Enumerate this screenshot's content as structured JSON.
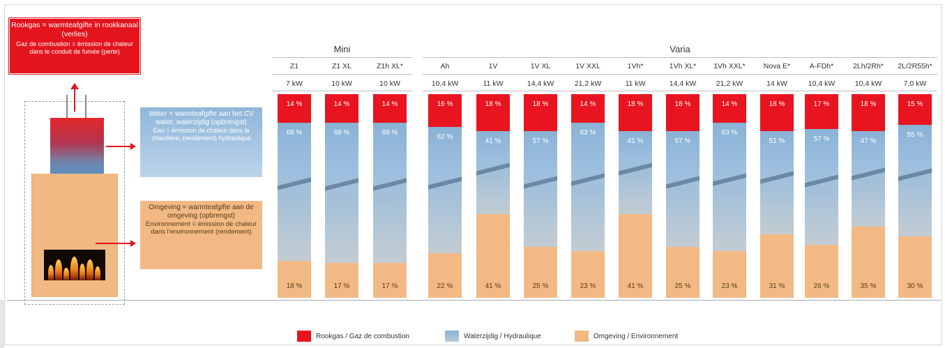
{
  "notes": {
    "flue_nl": "Rookgas = warmteafgifte in rookkanaal (verlies)",
    "flue_fr": "Gaz de combustion = émission de chaleur dans le conduit de fumée (perte)",
    "water_nl": "Water = warmteafgifte aan het CV water, waterzijdig (opbrengst)",
    "water_fr": "Eau = émission de chaleur dans la chaudière, (rendement) hydraulique",
    "env_nl": "Omgeving = warmteafgifte aan de omgeving (opbrengst)",
    "env_fr": "Environnement = émission de chaleur dans l'environnement (rendement)"
  },
  "colors": {
    "flue": "#e8141f",
    "water": "#8ab2d6",
    "environment": "#f2b985"
  },
  "chart_data": {
    "type": "bar",
    "stacked": true,
    "groups": [
      {
        "name": "Mini",
        "categories": [
          "Z1",
          "Z1 XL",
          "Z1h XL*"
        ]
      },
      {
        "name": "Varia",
        "categories": [
          "Ah",
          "1V",
          "1V XL",
          "1V XXL",
          "1Vh*",
          "1Vh XL*",
          "1Vh XXL*",
          "Nova E*",
          "A-FDh*",
          "2Lh/2Rh*",
          "2L/2R55h*"
        ]
      }
    ],
    "categories": [
      "Z1",
      "Z1 XL",
      "Z1h XL*",
      "Ah",
      "1V",
      "1V XL",
      "1V XXL",
      "1Vh*",
      "1Vh XL*",
      "1Vh XXL*",
      "Nova E*",
      "A-FDh*",
      "2Lh/2Rh*",
      "2L/2R55h*"
    ],
    "power": [
      "7 kW",
      "10 kW",
      "10 kW",
      "10,4 kW",
      "11 kW",
      "14,4 kW",
      "21,2 kW",
      "11 kW",
      "14,4 kW",
      "21,2 kW",
      "14 kW",
      "10,4 kW",
      "10,4 kW",
      "7,0 kW"
    ],
    "series": [
      {
        "name": "Rookgas / Gaz de combustion",
        "values": [
          14,
          14,
          14,
          16,
          18,
          18,
          14,
          18,
          18,
          14,
          18,
          17,
          18,
          15
        ]
      },
      {
        "name": "Waterzijdig / Hydraulique",
        "values": [
          68,
          69,
          69,
          62,
          41,
          57,
          63,
          41,
          57,
          63,
          51,
          57,
          47,
          55
        ]
      },
      {
        "name": "Omgeving / Environnement",
        "values": [
          18,
          17,
          17,
          22,
          41,
          25,
          23,
          41,
          25,
          23,
          31,
          26,
          35,
          30
        ]
      }
    ],
    "ylim": [
      0,
      100
    ],
    "legend_position": "bottom"
  }
}
